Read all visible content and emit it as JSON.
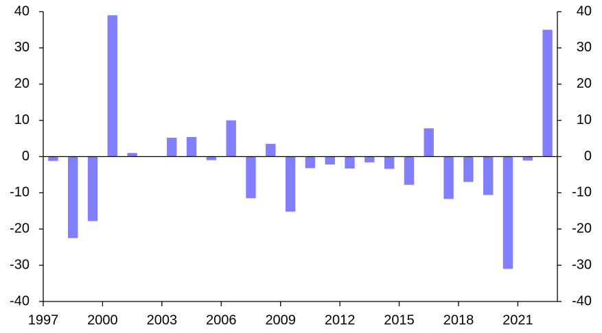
{
  "chart_data": {
    "type": "bar",
    "categories": [
      "1997",
      null,
      null,
      "2000",
      null,
      null,
      "2003",
      null,
      null,
      "2006",
      null,
      null,
      "2009",
      null,
      null,
      "2012",
      null,
      null,
      "2015",
      null,
      null,
      "2018",
      null,
      null,
      "2021",
      null
    ],
    "values": [
      -1.2,
      -22.5,
      -17.8,
      39,
      1,
      0,
      5.2,
      5.4,
      -1,
      10,
      -11.5,
      3.5,
      -15.2,
      -3.2,
      -2.2,
      -3.3,
      -1.6,
      -3.4,
      -7.8,
      7.8,
      -11.7,
      -7,
      -10.6,
      -31,
      -1.1,
      35
    ],
    "color": "#8080ff",
    "ylim": [
      -40,
      40
    ],
    "yticks": [
      -40,
      -30,
      -20,
      -10,
      0,
      10,
      20,
      30,
      40
    ],
    "y2lim": [
      -40,
      40
    ],
    "y2ticks": [
      -40,
      -30,
      -20,
      -10,
      0,
      10,
      20,
      30,
      40
    ],
    "grid": false
  }
}
